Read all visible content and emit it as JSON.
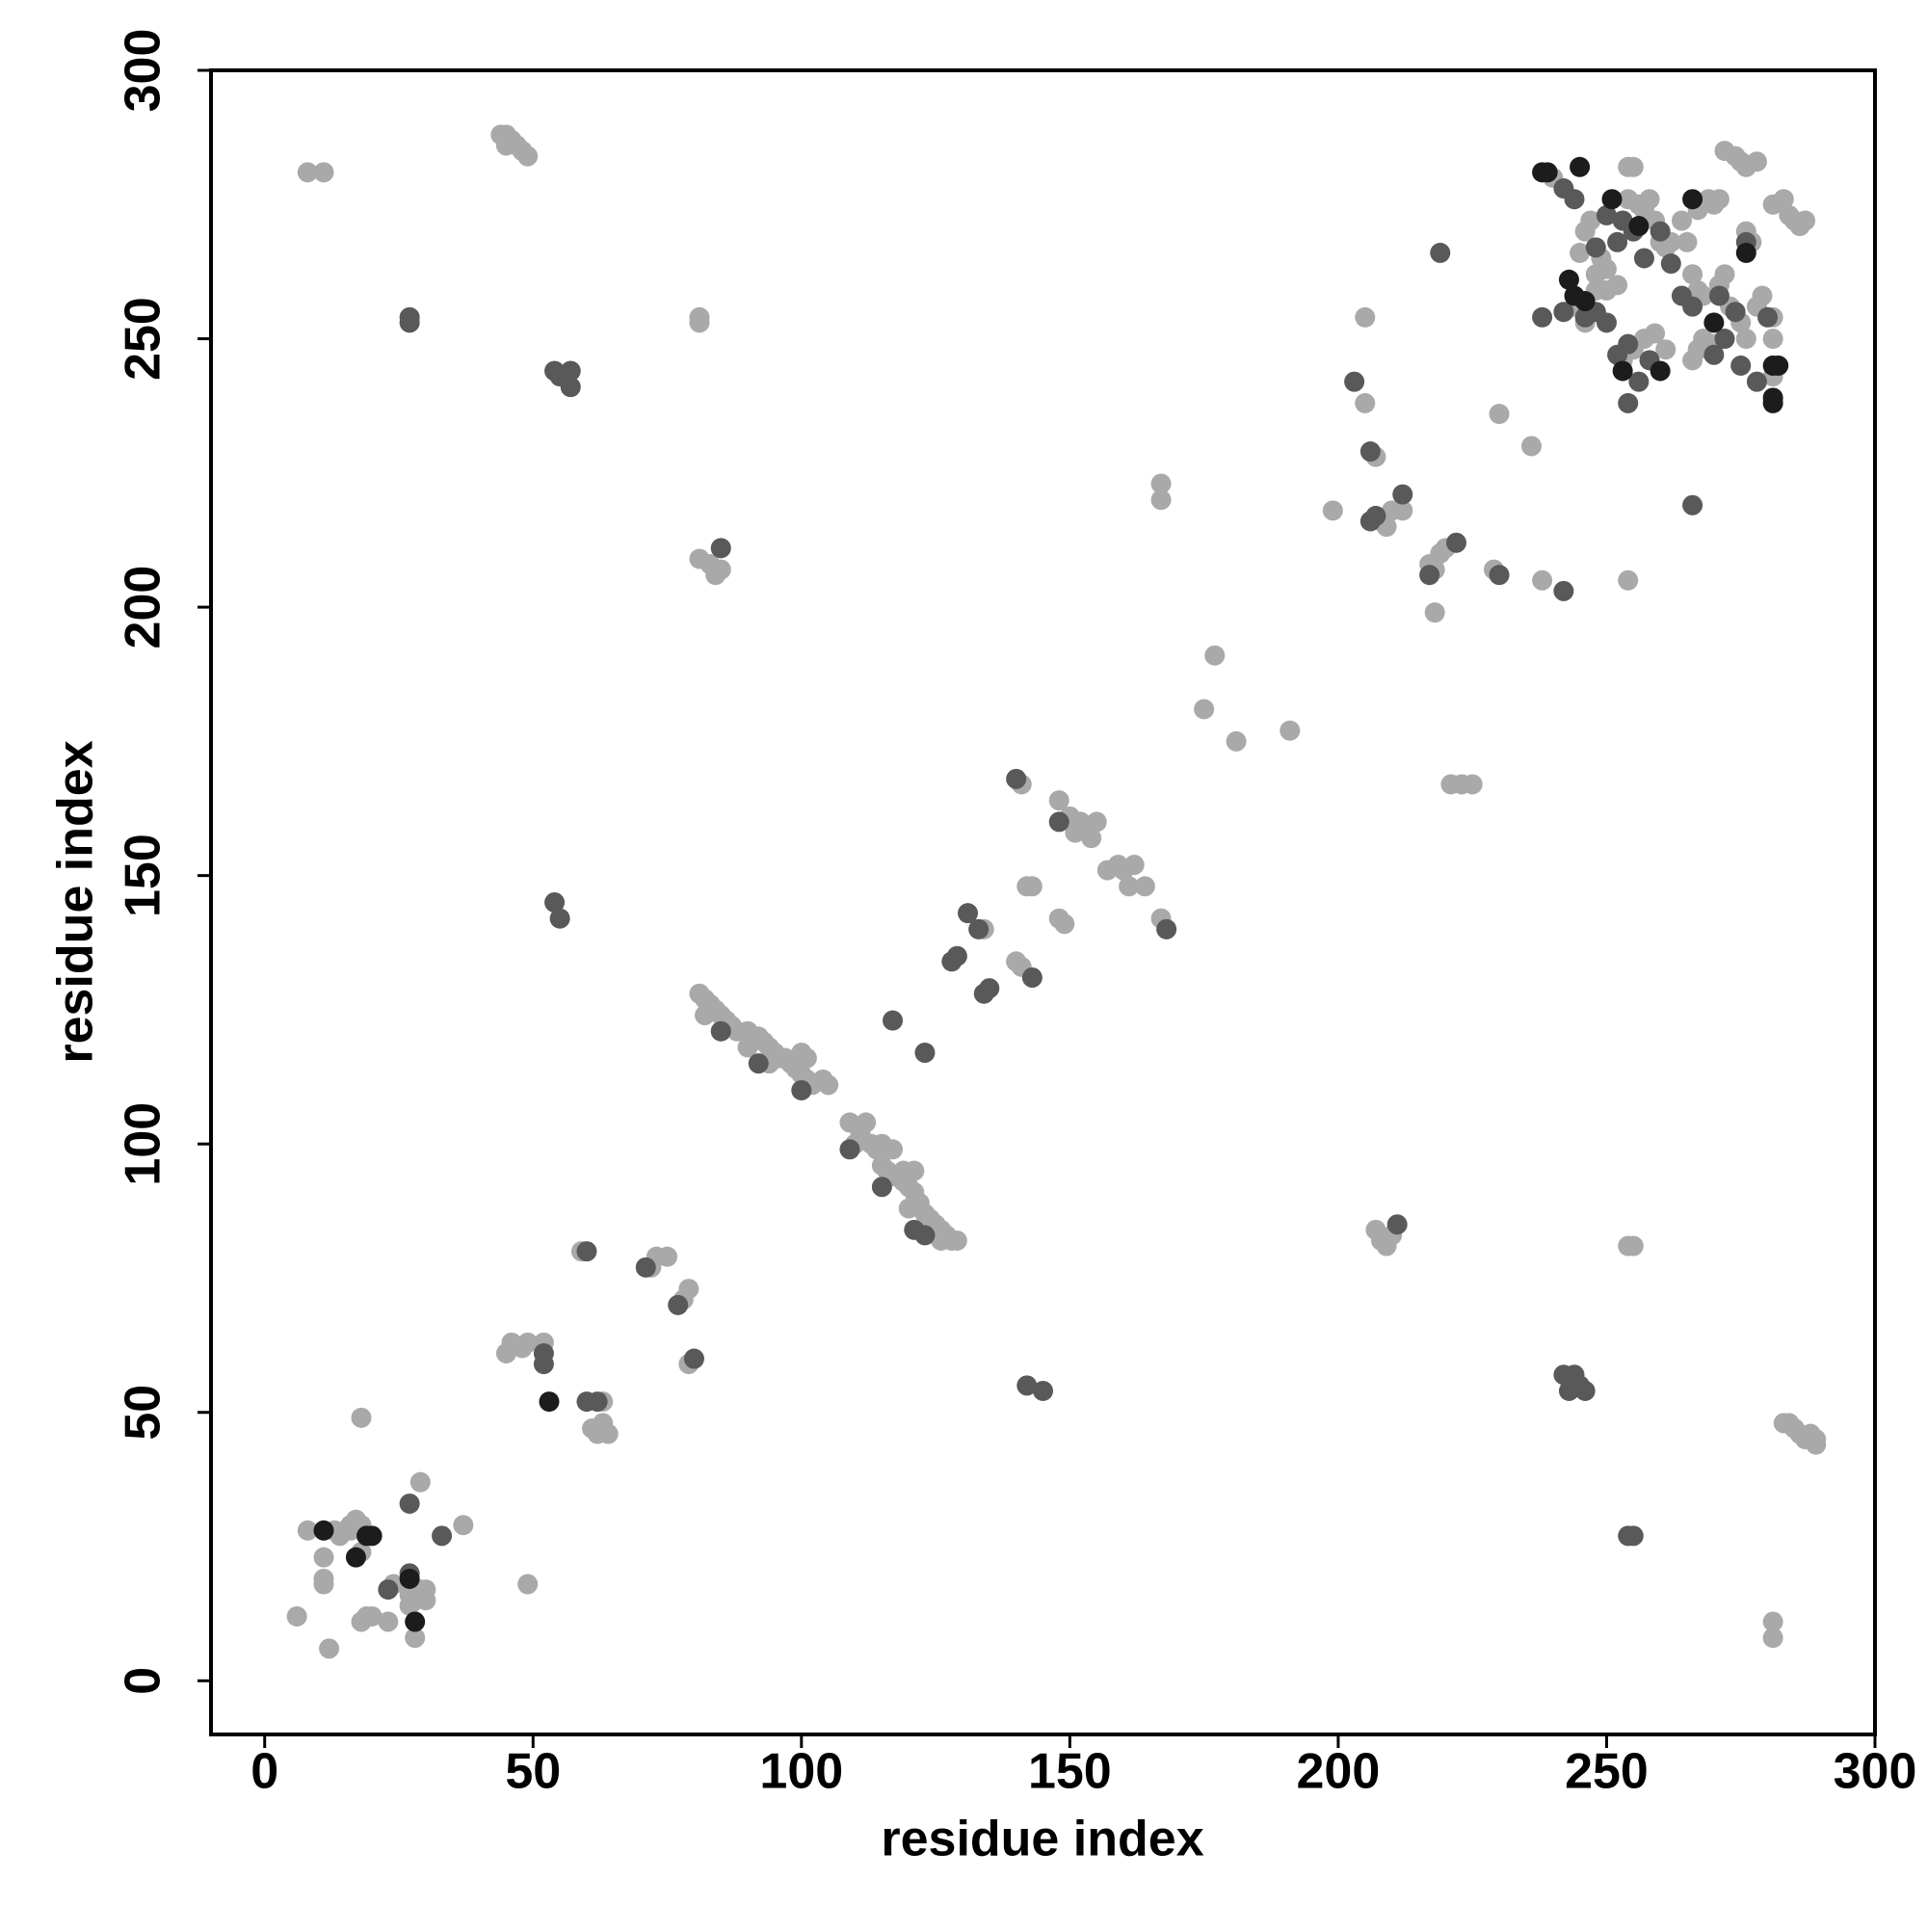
{
  "chart_data": {
    "type": "scatter",
    "xlabel": "residue index",
    "ylabel": "residue index",
    "xlim": [
      -10,
      300
    ],
    "ylim": [
      -10,
      300
    ],
    "xticks": [
      0,
      50,
      100,
      150,
      200,
      250,
      300
    ],
    "yticks": [
      0,
      50,
      100,
      150,
      200,
      250,
      300
    ],
    "series": [
      {
        "color": "#a9a9a9",
        "x": [
          8,
          11,
          11,
          11,
          12,
          6,
          14,
          15,
          16,
          17,
          18,
          18,
          19,
          20,
          18,
          18,
          23,
          24,
          27,
          28,
          28,
          29,
          29,
          30,
          30,
          37,
          49,
          16,
          13,
          27,
          29,
          8,
          11,
          44,
          45,
          46,
          47,
          48,
          49,
          45,
          81,
          81,
          81,
          83,
          84,
          85,
          45,
          46,
          48,
          49,
          52,
          59,
          61,
          62,
          63,
          64,
          63,
          72,
          73,
          75,
          78,
          79,
          79,
          80,
          81,
          82,
          83,
          84,
          85,
          86,
          87,
          88,
          90,
          91,
          92,
          93,
          94,
          95,
          96,
          97,
          98,
          99,
          100,
          101,
          102,
          104,
          105,
          100,
          101,
          100,
          94,
          90,
          85,
          82,
          109,
          110,
          111,
          112,
          113,
          114,
          115,
          116,
          117,
          118,
          119,
          120,
          121,
          122,
          123,
          124,
          125,
          126,
          127,
          128,
          129,
          115,
          117,
          119,
          121,
          120,
          124,
          126,
          134,
          140,
          141,
          141,
          142,
          143,
          148,
          148,
          149,
          150,
          151,
          152,
          153,
          154,
          155,
          157,
          159,
          160,
          162,
          161,
          164,
          167,
          167,
          167,
          175,
          177,
          181,
          191,
          199,
          205,
          205,
          207,
          208,
          209,
          210,
          212,
          217,
          218,
          219,
          220,
          218,
          221,
          223,
          225,
          229,
          230,
          236,
          238,
          254,
          207,
          208,
          209,
          210,
          254,
          255,
          281,
          281,
          283,
          284,
          285,
          286,
          287,
          288,
          289,
          289,
          240,
          246,
          247,
          248,
          249,
          250,
          252,
          254,
          255,
          254,
          256,
          257,
          258,
          259,
          260,
          261,
          262,
          244,
          246,
          248,
          253,
          255,
          257,
          259,
          261,
          266,
          267,
          268,
          269,
          270,
          271,
          272,
          273,
          275,
          276,
          268,
          266,
          267,
          269,
          270,
          272,
          274,
          275,
          276,
          278,
          276,
          277,
          281,
          283,
          284,
          285,
          286,
          287,
          281,
          281,
          281,
          278,
          279,
          265,
          264,
          267,
          271,
          250,
          245
        ],
        "y": [
          28,
          23,
          19,
          18,
          6,
          12,
          27,
          28,
          29,
          30,
          29,
          11,
          12,
          12,
          49,
          24,
          11,
          18,
          14,
          8,
          15,
          37,
          16,
          17,
          15,
          29,
          18,
          28,
          28,
          16,
          17,
          281,
          281,
          288,
          288,
          287,
          286,
          285,
          284,
          286,
          253,
          254,
          209,
          208,
          206,
          207,
          61,
          63,
          62,
          63,
          63,
          80,
          47,
          46,
          48,
          46,
          52,
          77,
          79,
          79,
          71,
          73,
          59,
          60,
          128,
          127,
          126,
          125,
          124,
          123,
          122,
          121,
          121,
          120,
          120,
          119,
          118,
          117,
          116,
          116,
          115,
          114,
          113,
          112,
          111,
          112,
          111,
          110,
          116,
          117,
          115,
          118,
          121,
          124,
          104,
          100,
          102,
          104,
          100,
          99,
          96,
          95,
          94,
          94,
          93,
          92,
          91,
          89,
          87,
          86,
          85,
          84,
          83,
          82,
          82,
          100,
          99,
          95,
          95,
          88,
          84,
          82,
          140,
          134,
          133,
          167,
          148,
          148,
          164,
          142,
          141,
          161,
          158,
          160,
          159,
          157,
          160,
          151,
          152,
          151,
          152,
          148,
          148,
          142,
          223,
          220,
          181,
          191,
          175,
          177,
          218,
          254,
          238,
          228,
          216,
          215,
          218,
          218,
          208,
          207,
          210,
          211,
          199,
          167,
          167,
          167,
          207,
          236,
          230,
          205,
          205,
          84,
          82,
          81,
          83,
          81,
          81,
          11,
          8,
          48,
          48,
          47,
          46,
          45,
          46,
          45,
          44,
          280,
          270,
          272,
          262,
          265,
          259,
          260,
          282,
          282,
          276,
          275,
          274,
          276,
          272,
          268,
          267,
          268,
          256,
          253,
          259,
          246,
          248,
          250,
          251,
          248,
          246,
          248,
          250,
          248,
          249,
          260,
          262,
          256,
          253,
          250,
          258,
          262,
          259,
          276,
          275,
          285,
          284,
          283,
          282,
          283,
          270,
          268,
          275,
          276,
          273,
          272,
          271,
          272,
          254,
          250,
          243,
          256,
          258,
          268,
          272,
          274,
          276,
          263,
          266
        ]
      },
      {
        "color": "#595959",
        "x": [
          27,
          33,
          23,
          27,
          27,
          27,
          54,
          55,
          57,
          57,
          85,
          54,
          55,
          52,
          52,
          60,
          60,
          62,
          71,
          77,
          80,
          85,
          92,
          100,
          109,
          115,
          121,
          123,
          117,
          123,
          131,
          133,
          128,
          129,
          134,
          135,
          140,
          143,
          148,
          168,
          142,
          145,
          203,
          206,
          206,
          207,
          212,
          217,
          219,
          222,
          230,
          242,
          211,
          254,
          255,
          266,
          242,
          244,
          245,
          243,
          246,
          238,
          242,
          244,
          248,
          250,
          252,
          253,
          255,
          257,
          254,
          256,
          260,
          264,
          266,
          270,
          271,
          272,
          274,
          275,
          278,
          276,
          280,
          246,
          248,
          250,
          252,
          254,
          258,
          242,
          262
        ],
        "y": [
          33,
          27,
          17,
          20,
          253,
          254,
          244,
          243,
          244,
          241,
          211,
          145,
          142,
          59,
          61,
          52,
          80,
          52,
          77,
          70,
          60,
          121,
          115,
          110,
          99,
          92,
          84,
          83,
          123,
          117,
          143,
          140,
          134,
          135,
          128,
          129,
          168,
          131,
          160,
          140,
          55,
          54,
          242,
          229,
          216,
          217,
          221,
          206,
          266,
          212,
          206,
          203,
          85,
          27,
          27,
          219,
          57,
          57,
          55,
          54,
          54,
          254,
          278,
          276,
          267,
          273,
          268,
          272,
          270,
          265,
          238,
          242,
          270,
          258,
          256,
          247,
          258,
          250,
          255,
          245,
          242,
          268,
          254,
          254,
          255,
          253,
          247,
          249,
          246,
          255,
          264
        ]
      },
      {
        "color": "#1c1c1c",
        "x": [
          11,
          19,
          20,
          17,
          28,
          27,
          53,
          238,
          239,
          245,
          251,
          256,
          243,
          244,
          253,
          260,
          270,
          276,
          281,
          282,
          281,
          281,
          266,
          246
        ],
        "y": [
          28,
          27,
          27,
          23,
          11,
          19,
          52,
          281,
          281,
          282,
          276,
          271,
          261,
          258,
          244,
          244,
          253,
          266,
          245,
          245,
          238,
          239,
          276,
          257
        ]
      }
    ]
  }
}
